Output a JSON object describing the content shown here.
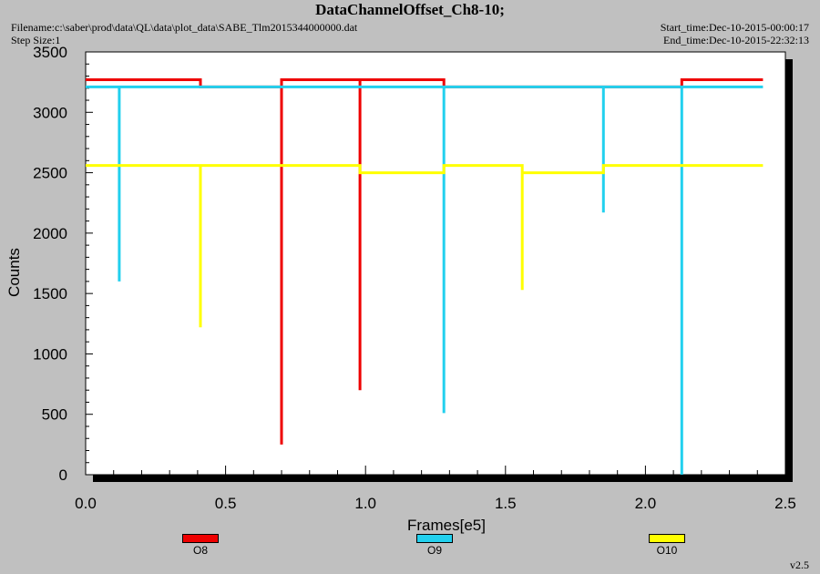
{
  "header": {
    "title": "DataChannelOffset_Ch8-10;",
    "filename": "Filename:c:\\saber\\prod\\data\\QL\\data\\plot_data\\SABE_Tlm2015344000000.dat",
    "step_size": "Step Size:1",
    "start_time": "Start_time:Dec-10-2015-00:00:17",
    "end_time": "End_time:Dec-10-2015-22:32:13"
  },
  "footer": {
    "version": "v2.5"
  },
  "colors": {
    "background": "#c0c0c0",
    "plot_bg": "#ffffff",
    "O8": "#ee0000",
    "O9": "#22d0ee",
    "O10": "#ffff00"
  },
  "chart_data": {
    "type": "line",
    "title": "DataChannelOffset_Ch8-10;",
    "xlabel": "Frames[e5]",
    "ylabel": "Counts",
    "xlim": [
      0.0,
      2.5
    ],
    "ylim": [
      0,
      3500
    ],
    "xticks": [
      "0.0",
      "0.5",
      "1.0",
      "1.5",
      "2.0",
      "2.5"
    ],
    "yticks": [
      "0",
      "500",
      "1000",
      "1500",
      "2000",
      "2500",
      "3000",
      "3500"
    ],
    "grid": false,
    "legend_position": "bottom",
    "series": [
      {
        "name": "O8",
        "color": "#ee0000",
        "points": [
          [
            0.0,
            3270
          ],
          [
            0.41,
            3270
          ],
          [
            0.41,
            3210
          ],
          [
            0.7,
            3210
          ],
          [
            0.7,
            250
          ],
          [
            0.7,
            3270
          ],
          [
            0.98,
            3270
          ],
          [
            0.98,
            700
          ],
          [
            0.98,
            3270
          ],
          [
            1.28,
            3270
          ],
          [
            1.28,
            3210
          ],
          [
            2.13,
            3210
          ],
          [
            2.13,
            3270
          ],
          [
            2.42,
            3270
          ]
        ]
      },
      {
        "name": "O9",
        "color": "#22d0ee",
        "points": [
          [
            0.0,
            3210
          ],
          [
            0.12,
            3210
          ],
          [
            0.12,
            1600
          ],
          [
            0.12,
            3210
          ],
          [
            1.28,
            3210
          ],
          [
            1.28,
            510
          ],
          [
            1.28,
            3210
          ],
          [
            1.85,
            3210
          ],
          [
            1.85,
            2170
          ],
          [
            1.85,
            3210
          ],
          [
            2.13,
            3210
          ],
          [
            2.13,
            0
          ],
          [
            2.13,
            3210
          ],
          [
            2.42,
            3210
          ]
        ]
      },
      {
        "name": "O10",
        "color": "#ffff00",
        "points": [
          [
            0.0,
            2560
          ],
          [
            0.41,
            2560
          ],
          [
            0.41,
            1220
          ],
          [
            0.41,
            2560
          ],
          [
            0.98,
            2560
          ],
          [
            0.98,
            2500
          ],
          [
            1.28,
            2500
          ],
          [
            1.28,
            2560
          ],
          [
            1.56,
            2560
          ],
          [
            1.56,
            1530
          ],
          [
            1.56,
            2500
          ],
          [
            1.85,
            2500
          ],
          [
            1.85,
            2560
          ],
          [
            2.42,
            2560
          ]
        ]
      }
    ]
  }
}
